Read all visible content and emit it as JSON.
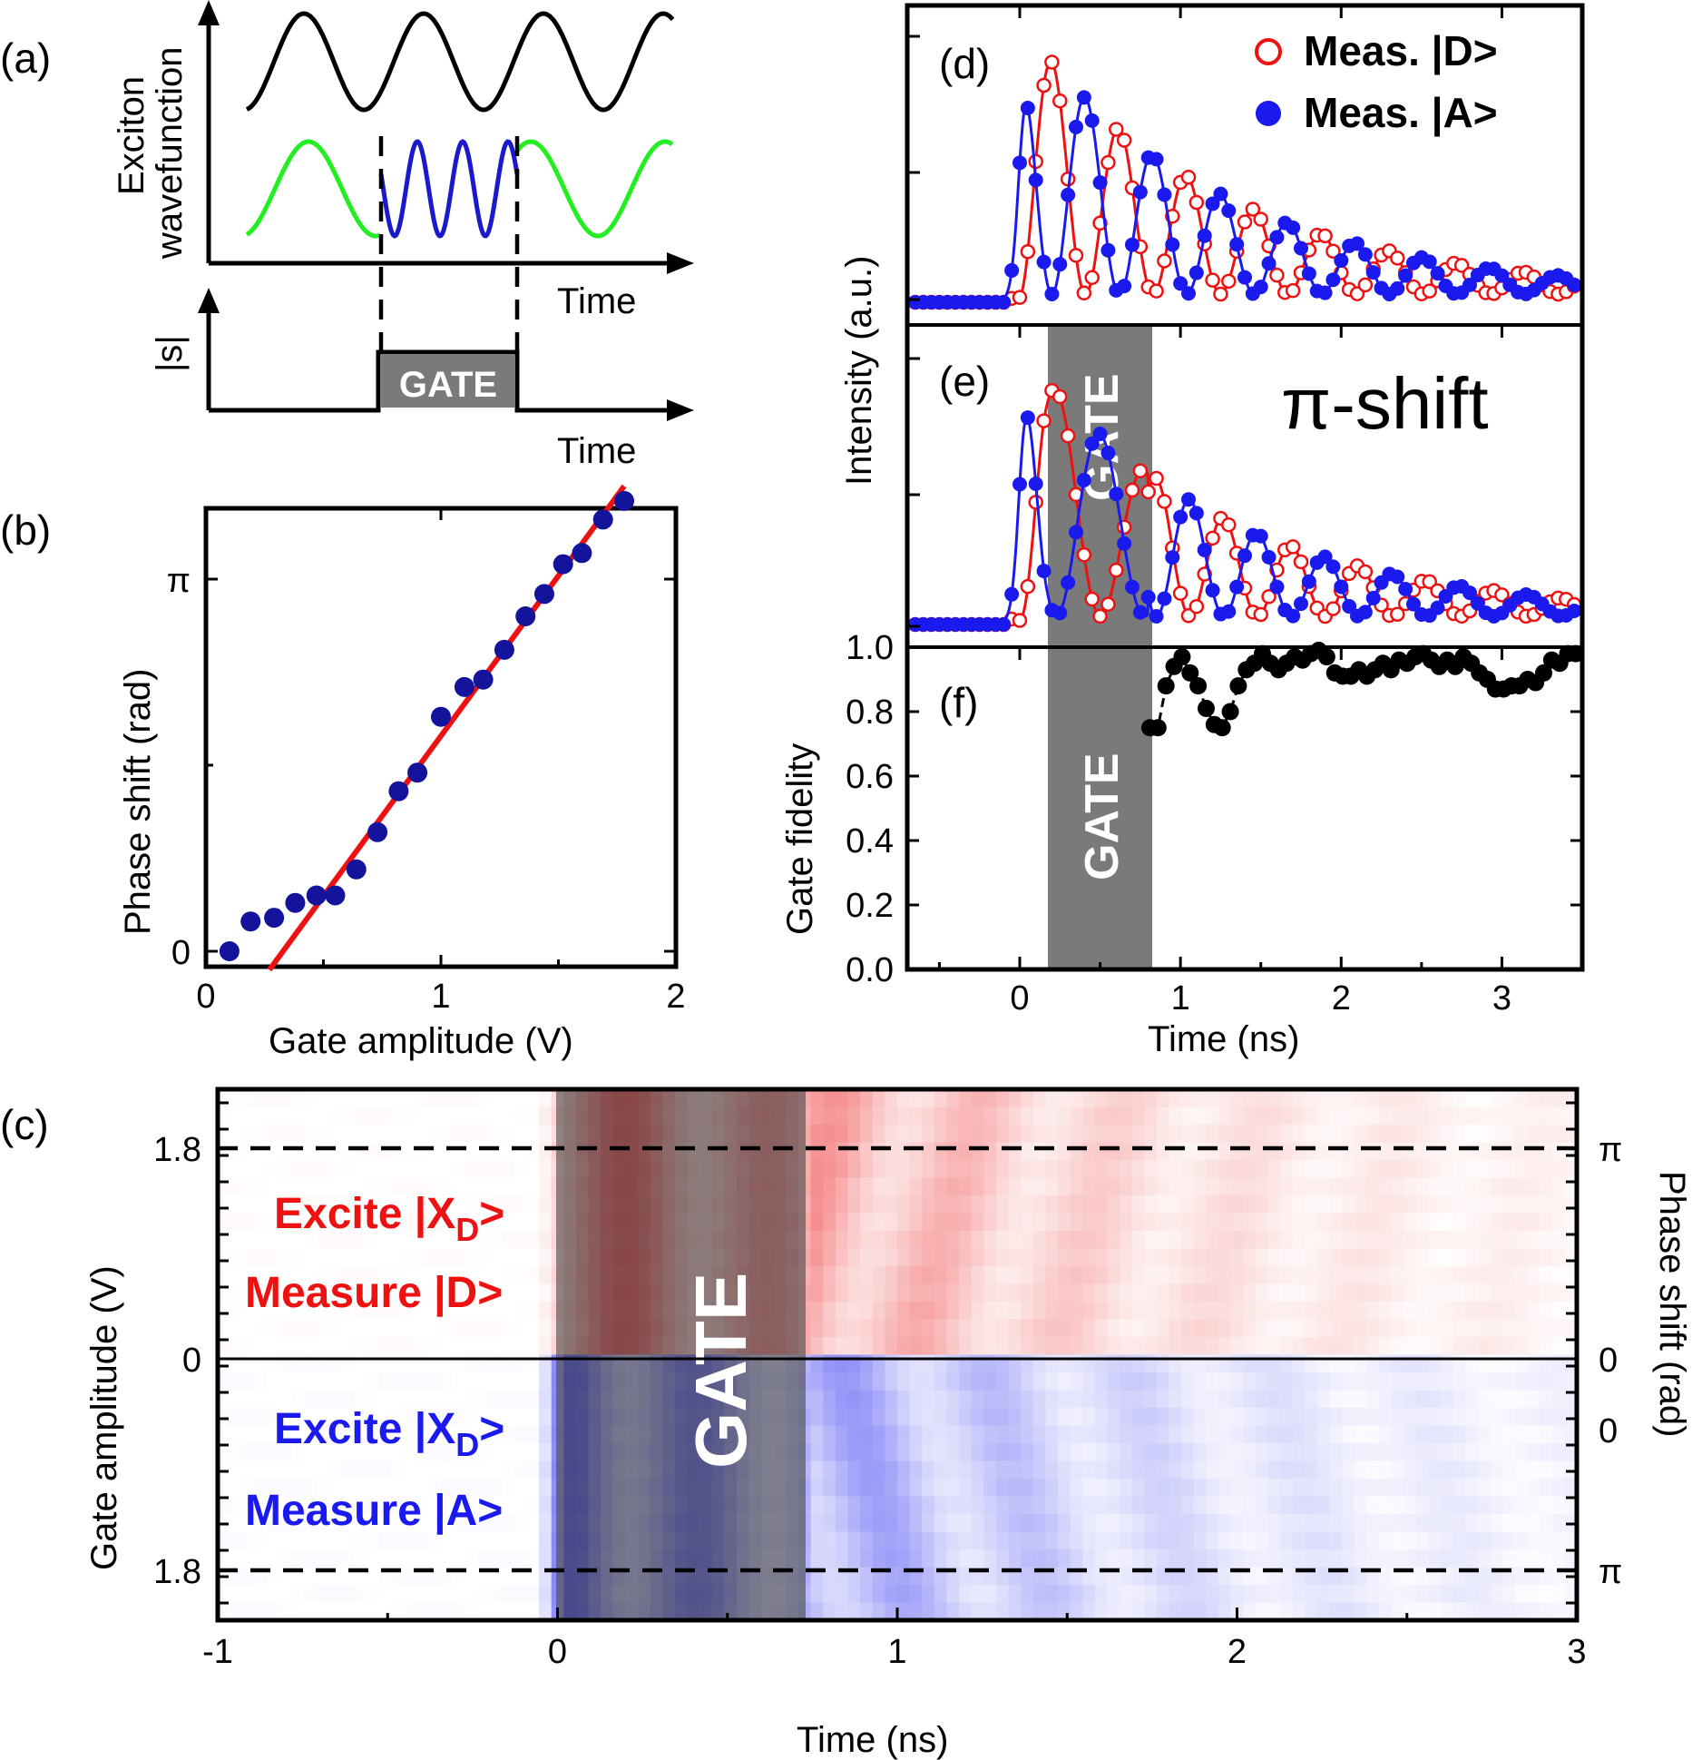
{
  "panel_labels": {
    "a": "(a)",
    "b": "(b)",
    "c": "(c)",
    "d": "(d)",
    "e": "(e)",
    "f": "(f)"
  },
  "schematic": {
    "ylabel_line1": "Exciton",
    "ylabel_line2": "wavefunction",
    "lower_ylabel": "|s|",
    "xlabel_top": "Time",
    "xlabel_bottom": "Time",
    "gate_label": "GATE",
    "colors": {
      "top_wave": "#000000",
      "outside_gate": "#22ee22",
      "inside_gate": "#1a1acc",
      "gate_box": "#7a7a7a"
    }
  },
  "chart_data": [
    {
      "panel": "b",
      "type": "scatter",
      "xlabel": "Gate amplitude (V)",
      "ylabel": "Phase shift (rad)",
      "xlim": [
        0,
        2
      ],
      "xticks": [
        "0",
        "1",
        "2"
      ],
      "yticks": [
        "0",
        "π"
      ],
      "ylim_rad_fraction_of_pi": [
        -0.02,
        1.2
      ],
      "points": {
        "x": [
          0.1,
          0.19,
          0.29,
          0.38,
          0.47,
          0.55,
          0.64,
          0.73,
          0.82,
          0.9,
          1.0,
          1.1,
          1.18,
          1.27,
          1.36,
          1.44,
          1.52,
          1.6,
          1.69,
          1.78
        ],
        "y_over_pi": [
          0.0,
          0.08,
          0.09,
          0.13,
          0.15,
          0.15,
          0.22,
          0.32,
          0.43,
          0.48,
          0.63,
          0.71,
          0.73,
          0.81,
          0.9,
          0.96,
          1.04,
          1.07,
          1.16,
          1.21
        ]
      },
      "fit": {
        "x": [
          0.27,
          1.78
        ],
        "y_over_pi": [
          -0.05,
          1.25
        ],
        "color": "#ee1111"
      },
      "marker_color": "#13139c"
    },
    {
      "panel": "c",
      "type": "heatmap",
      "xlabel": "Time (ns)",
      "ylabel": "Gate amplitude (V)",
      "ylabel_right": "Phase shift (rad)",
      "xlim": [
        -1,
        3
      ],
      "xticks": [
        "-1",
        "0",
        "1",
        "2",
        "3"
      ],
      "left_ticks_top": [
        "1.8",
        "0"
      ],
      "left_ticks_bottom": [
        "0",
        "1.8"
      ],
      "right_ticks_top": [
        "π",
        "0"
      ],
      "right_ticks_bottom": [
        "0",
        "π"
      ],
      "gate_ns": [
        0.25,
        0.75
      ],
      "gate_label": "GATE",
      "top_block": {
        "line1": "Excite |X",
        "line1_sub": "D",
        "line1_end": ">",
        "line2": "Measure |D>",
        "color": "#ee1111"
      },
      "bottom_block": {
        "line1": "Excite |X",
        "line1_sub": "D",
        "line1_end": ">",
        "line2": "Measure |A>",
        "color": "#1a1aee"
      }
    },
    {
      "panel": "d",
      "type": "line",
      "ylabel": "Intensity (a.u.)",
      "xlim": [
        -0.7,
        3.5
      ],
      "legend": [
        {
          "label": "Meas. |D>",
          "marker": "open-circle",
          "color": "#ee1111"
        },
        {
          "label": "Meas. |A>",
          "marker": "filled-circle",
          "color": "#1a1aee"
        }
      ]
    },
    {
      "panel": "e",
      "type": "line",
      "annotation": "π-shift",
      "gate_label": "GATE",
      "gate_ns": [
        0.15,
        0.8
      ]
    },
    {
      "panel": "f",
      "type": "scatter",
      "xlabel": "Time (ns)",
      "ylabel": "Gate fidelity",
      "xlim": [
        -0.7,
        3.5
      ],
      "ylim": [
        0,
        1
      ],
      "xticks": [
        "0",
        "1",
        "2",
        "3"
      ],
      "yticks": [
        "0.0",
        "0.2",
        "0.4",
        "0.6",
        "0.8",
        "1.0"
      ],
      "gate_label": "GATE",
      "series": [
        {
          "x": [
            0.81,
            0.86,
            0.91,
            0.96,
            1.01,
            1.06,
            1.11,
            1.16,
            1.21,
            1.26,
            1.31,
            1.36,
            1.41,
            1.46,
            1.51,
            1.56,
            1.61,
            1.66,
            1.71,
            1.76,
            1.81,
            1.86,
            1.91,
            1.96,
            2.01,
            2.06,
            2.11,
            2.16,
            2.21,
            2.26,
            2.31,
            2.36,
            2.41,
            2.46,
            2.51,
            2.56,
            2.61,
            2.66,
            2.71,
            2.76,
            2.81,
            2.86,
            2.91,
            2.96,
            3.01,
            3.06,
            3.11,
            3.16,
            3.21,
            3.26,
            3.31,
            3.36,
            3.41,
            3.46
          ],
          "y": [
            0.75,
            0.75,
            0.88,
            0.94,
            0.97,
            0.92,
            0.88,
            0.81,
            0.76,
            0.75,
            0.8,
            0.88,
            0.93,
            0.95,
            0.98,
            0.95,
            0.93,
            0.95,
            0.97,
            0.96,
            0.98,
            0.99,
            0.97,
            0.92,
            0.91,
            0.91,
            0.93,
            0.91,
            0.93,
            0.95,
            0.93,
            0.96,
            0.95,
            0.97,
            0.98,
            0.96,
            0.94,
            0.96,
            0.94,
            0.97,
            0.95,
            0.92,
            0.9,
            0.87,
            0.87,
            0.88,
            0.88,
            0.9,
            0.89,
            0.92,
            0.96,
            0.95,
            0.98,
            0.98
          ]
        }
      ]
    }
  ]
}
